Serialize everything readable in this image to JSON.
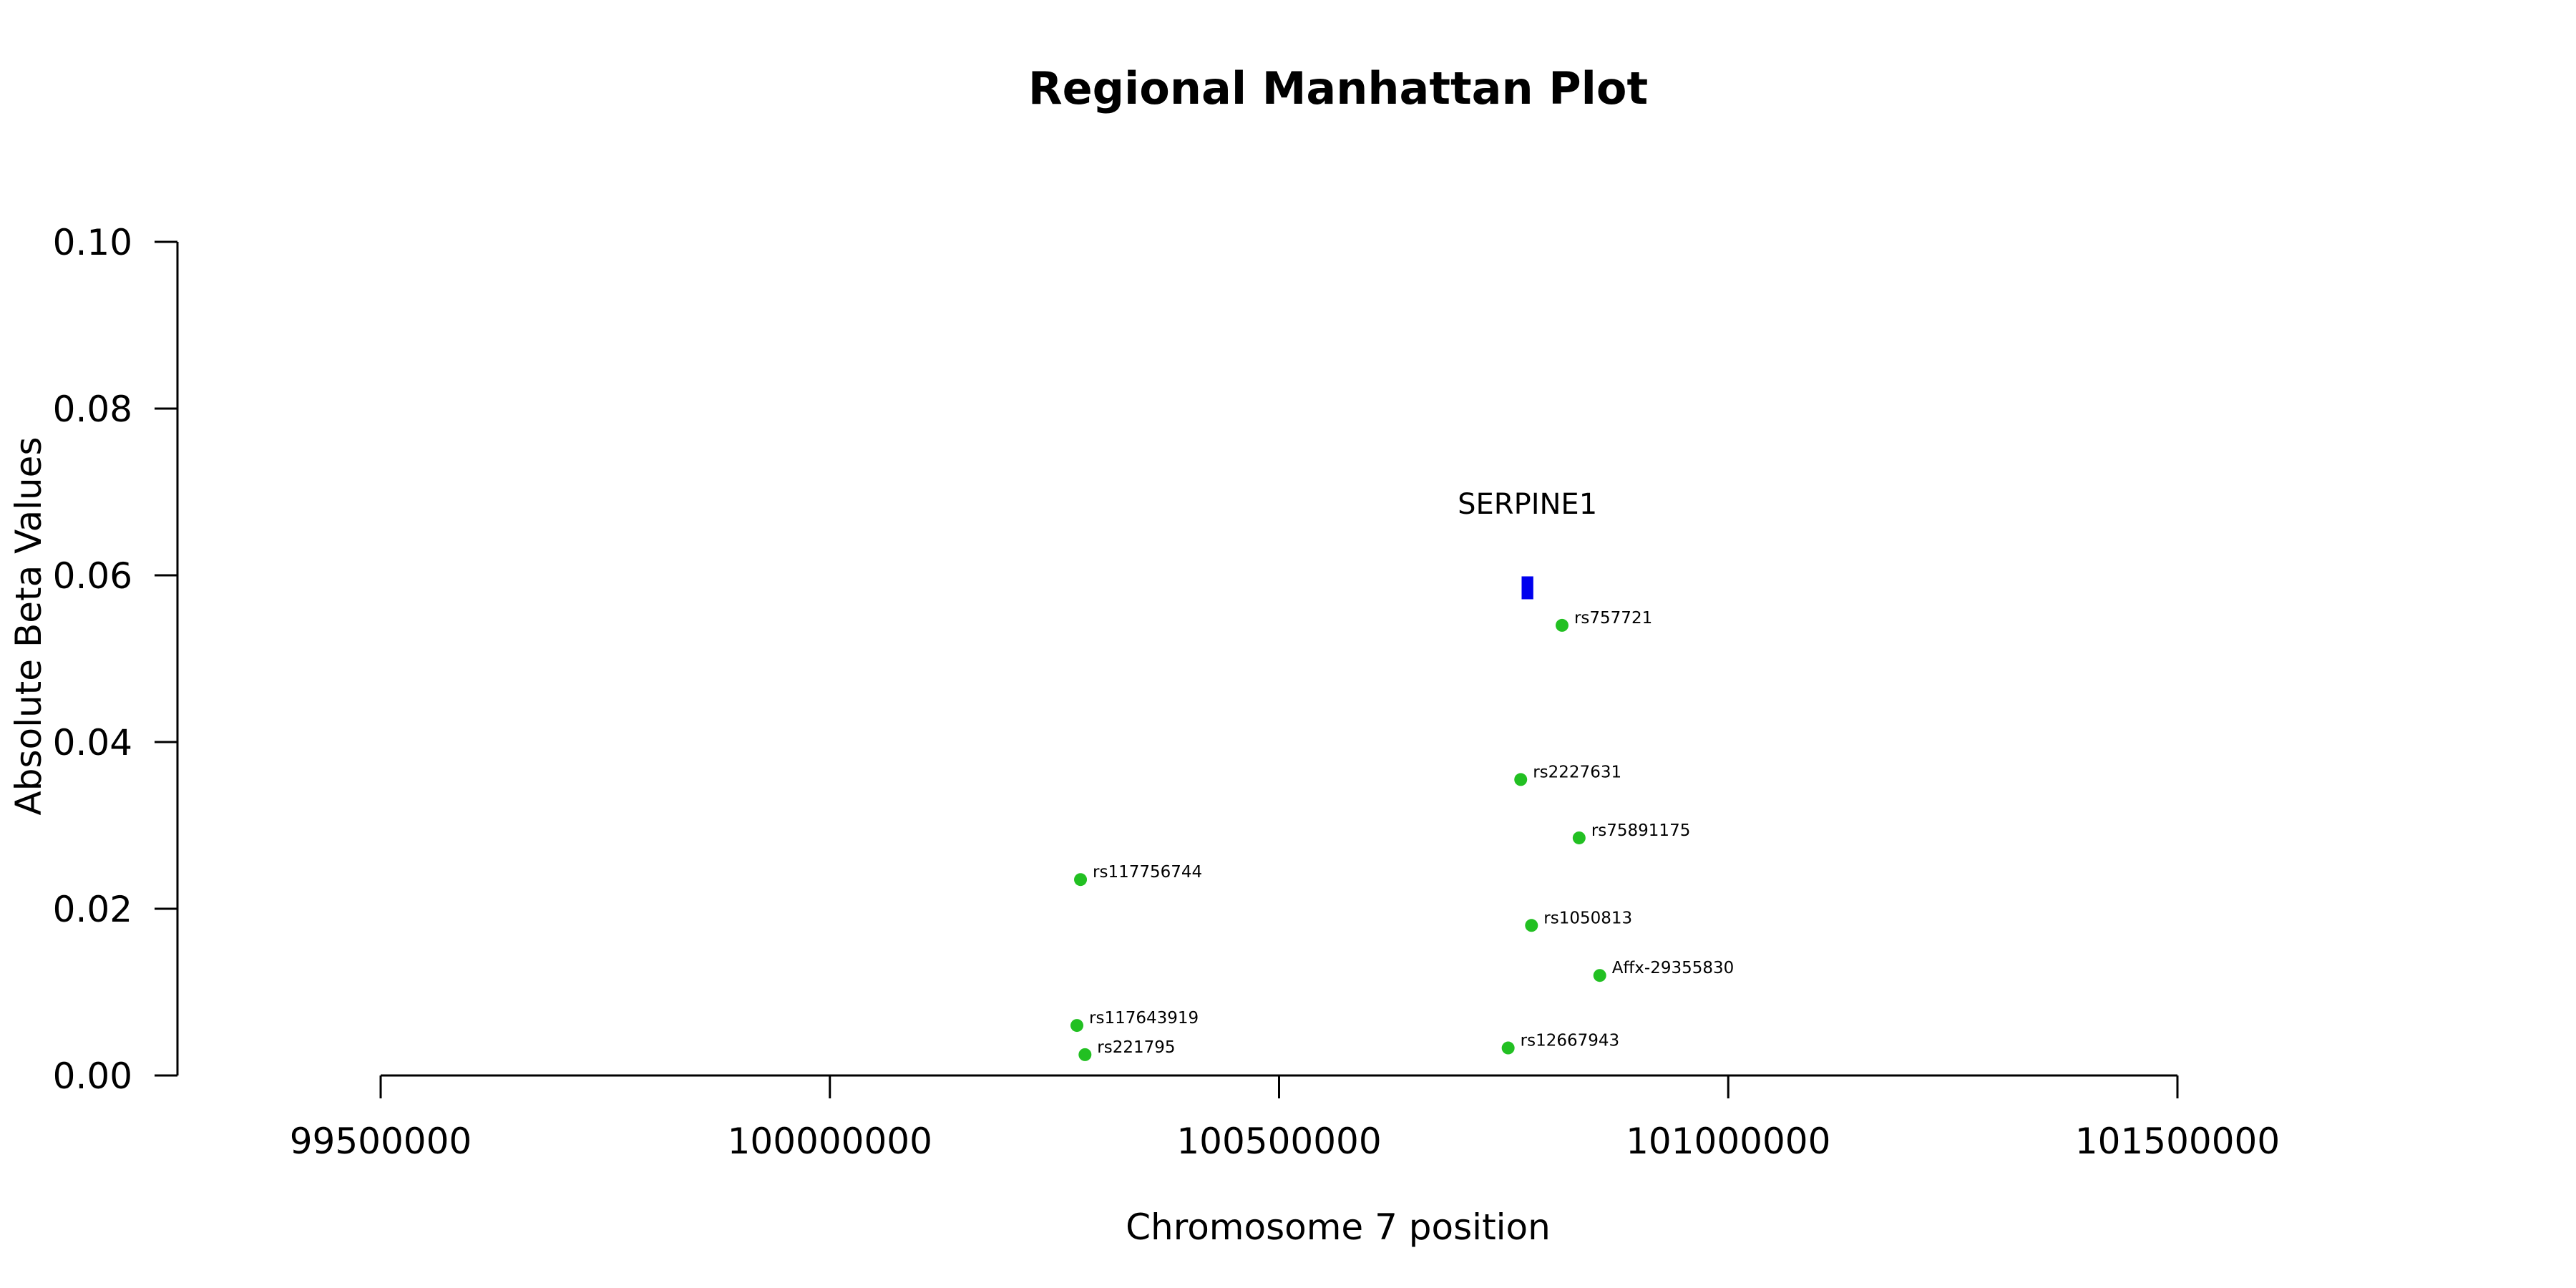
{
  "chart_data": {
    "type": "scatter",
    "title": "Regional Manhattan Plot",
    "xlabel": "Chromosome 7 position",
    "ylabel": "Absolute Beta Values",
    "xlim": [
      99500000,
      101500000
    ],
    "ylim": [
      0.0,
      0.1
    ],
    "x_ticks": [
      99500000,
      100000000,
      100500000,
      101000000,
      101500000
    ],
    "x_tick_labels": [
      "99500000",
      "100000000",
      "100500000",
      "101000000",
      "101500000"
    ],
    "y_ticks": [
      0.0,
      0.02,
      0.04,
      0.06,
      0.08,
      0.1
    ],
    "y_tick_labels": [
      "0.00",
      "0.02",
      "0.04",
      "0.06",
      "0.08",
      "0.10"
    ],
    "point_color": "#22c022",
    "gene_color": "#0000ee",
    "genes": [
      {
        "name": "SERPINE1",
        "start": 100770000,
        "end": 100783000,
        "y": 0.0585
      }
    ],
    "points": [
      {
        "label": "rs757721",
        "x": 100815000,
        "y": 0.054
      },
      {
        "label": "rs2227631",
        "x": 100769000,
        "y": 0.0355
      },
      {
        "label": "rs75891175",
        "x": 100834000,
        "y": 0.0285
      },
      {
        "label": "rs117756744",
        "x": 100279000,
        "y": 0.0235
      },
      {
        "label": "rs1050813",
        "x": 100781000,
        "y": 0.018
      },
      {
        "label": "Affx-29355830",
        "x": 100857000,
        "y": 0.012
      },
      {
        "label": "rs117643919",
        "x": 100275000,
        "y": 0.006
      },
      {
        "label": "rs221795",
        "x": 100284000,
        "y": 0.0025
      },
      {
        "label": "rs12667943",
        "x": 100755000,
        "y": 0.0033
      }
    ]
  }
}
